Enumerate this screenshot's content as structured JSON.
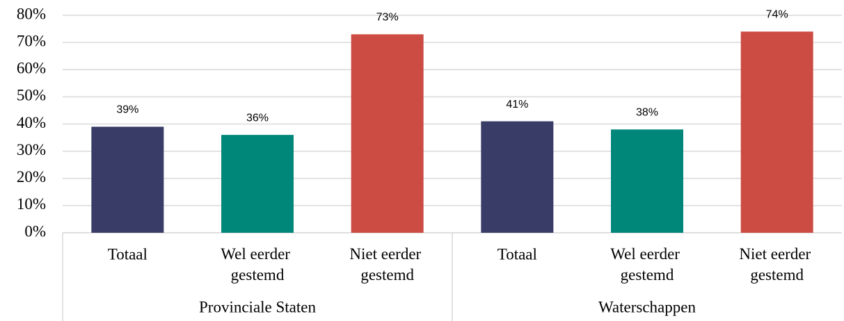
{
  "chart_data": {
    "type": "bar",
    "groups": [
      "Provinciale Staten",
      "Waterschappen"
    ],
    "categories": [
      "Totaal",
      "Wel eerder gestemd",
      "Niet eerder gestemd",
      "Totaal",
      "Wel eerder gestemd",
      "Niet eerder gestemd"
    ],
    "values": [
      39,
      36,
      73,
      41,
      38,
      74
    ],
    "value_labels": [
      "39%",
      "36%",
      "73%",
      "41%",
      "38%",
      "74%"
    ],
    "colors": [
      "#383c66",
      "#00877a",
      "#cc4b43",
      "#383c66",
      "#00877a",
      "#cc4b43"
    ],
    "ylim": [
      0,
      80
    ],
    "yticks": [
      {
        "value": 0,
        "label": "0%"
      },
      {
        "value": 10,
        "label": "10%"
      },
      {
        "value": 20,
        "label": "20%"
      },
      {
        "value": 30,
        "label": "30%"
      },
      {
        "value": 40,
        "label": "40%"
      },
      {
        "value": 50,
        "label": "50%"
      },
      {
        "value": 60,
        "label": "60%"
      },
      {
        "value": 70,
        "label": "70%"
      },
      {
        "value": 80,
        "label": "80%"
      }
    ],
    "grid": true
  }
}
